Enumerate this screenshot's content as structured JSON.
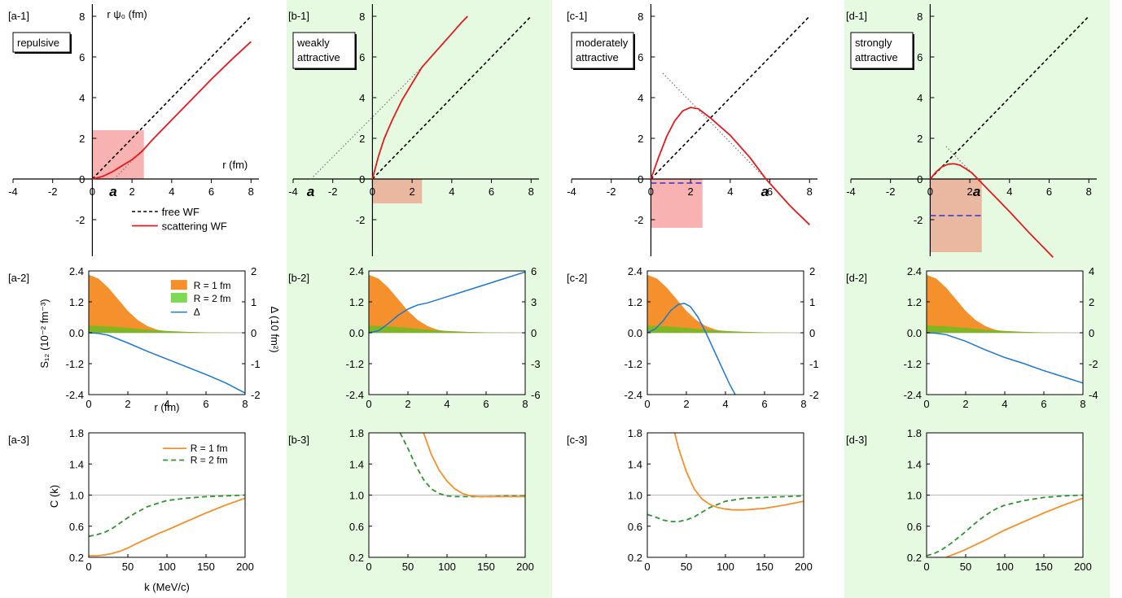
{
  "colors": {
    "panel_bg": "#e6fae1",
    "free": "#000000",
    "scattering": "#e41a1c",
    "fill_r1": "#f4912c",
    "fill_r2": "#7ed957",
    "fill_r2_overlap": "#80b61f",
    "delta": "#1a78d2",
    "c_r1": "#f4912c",
    "c_r2": "#2c962c",
    "bound": "#3333cc",
    "box_pink": "#f8b2b2",
    "box_tan": "#eab7a0"
  },
  "labels": {
    "row1_ylabel": "r ψ₀ (fm)",
    "row1_xlabel": "r (fm)",
    "row2_ylabel": "S₁₂ (10⁻² fm⁻³)",
    "row2_ylabel2": "Δ  (10 fm²)",
    "row2_xlabel": "r (fm)",
    "row3_ylabel": "C (k)",
    "row3_xlabel": "k (MeV/c)",
    "legend_free": "free WF",
    "legend_scat": "scattering WF",
    "legend_r1": "R = 1 fm",
    "legend_r2": "R = 2 fm",
    "legend_delta": "Δ",
    "legend_c_r1": "R = 1 fm",
    "legend_c_r2": "R = 2 fm",
    "a_marker": "a"
  },
  "panels": [
    {
      "col": "a",
      "title": "repulsive",
      "label1": "[a-1]",
      "label2": "[a-2]",
      "label3": "[a-3]",
      "bg": false
    },
    {
      "col": "b",
      "title": "weakly attractive",
      "label1": "[b-1]",
      "label2": "[b-2]",
      "label3": "[b-3]",
      "bg": true
    },
    {
      "col": "c",
      "title": "moderately attractive",
      "label1": "[c-1]",
      "label2": "[c-2]",
      "label3": "[c-3]",
      "bg": false
    },
    {
      "col": "d",
      "title": "strongly attractive",
      "label1": "[d-1]",
      "label2": "[d-2]",
      "label3": "[d-3]",
      "bg": true
    }
  ],
  "chart_data": [
    {
      "type": "line",
      "row": "wave functions",
      "xlim": [
        -4,
        8.4
      ],
      "ylim": [
        -3.8,
        8.6
      ],
      "xticks": [
        -4,
        -2,
        0,
        2,
        4,
        6,
        8
      ],
      "yticks": [
        -2,
        0,
        2,
        4,
        6,
        8
      ],
      "panels": [
        {
          "scattering_length": 1.1,
          "series": [
            {
              "name": "free WF",
              "x": [
                0,
                8
              ],
              "y": [
                0,
                8
              ]
            },
            {
              "name": "scattering WF",
              "x": [
                0,
                0.5,
                1,
                1.5,
                2,
                2.5,
                3,
                4,
                5,
                6,
                7,
                8
              ],
              "y": [
                0,
                0.12,
                0.35,
                0.65,
                0.95,
                1.35,
                1.9,
                2.9,
                3.9,
                4.9,
                5.85,
                6.75
              ]
            }
          ],
          "asymptote": {
            "x": [
              1.1,
              2.6
            ],
            "y": [
              0,
              1.5
            ]
          },
          "shaded": {
            "x": [
              0,
              2.6
            ],
            "y": [
              0,
              2.4
            ]
          }
        },
        {
          "scattering_length": -3.1,
          "series": [
            {
              "name": "free WF",
              "x": [
                0,
                8
              ],
              "y": [
                0,
                8
              ]
            },
            {
              "name": "scattering WF",
              "x": [
                0,
                0.3,
                0.6,
                1,
                1.5,
                2,
                2.5,
                3,
                3.5,
                4,
                4.5,
                4.8
              ],
              "y": [
                0,
                1.1,
                2.0,
                2.9,
                3.9,
                4.7,
                5.5,
                6.05,
                6.6,
                7.15,
                7.7,
                8.0
              ]
            }
          ],
          "asymptote": {
            "x": [
              -3.1,
              2.5
            ],
            "y": [
              0,
              5.5
            ]
          },
          "shaded": {
            "x": [
              0,
              2.5
            ],
            "y": [
              -1.2,
              0
            ]
          }
        },
        {
          "scattering_length": 5.8,
          "series": [
            {
              "name": "free WF",
              "x": [
                0,
                8
              ],
              "y": [
                0,
                8
              ]
            },
            {
              "name": "scattering WF",
              "x": [
                0,
                0.4,
                0.8,
                1.2,
                1.6,
                2,
                2.4,
                3,
                4,
                5,
                5.8,
                7,
                8
              ],
              "y": [
                0,
                1.1,
                2.1,
                2.85,
                3.35,
                3.52,
                3.45,
                3.0,
                2.15,
                1.05,
                0,
                -1.3,
                -2.25
              ]
            }
          ],
          "asymptote": {
            "x": [
              0.6,
              5.8
            ],
            "y": [
              5.2,
              0
            ]
          },
          "shaded": {
            "x": [
              0,
              2.6
            ],
            "y": [
              -2.4,
              0
            ]
          },
          "bound_level": -0.2
        },
        {
          "scattering_length": 2.4,
          "series": [
            {
              "name": "free WF",
              "x": [
                0,
                8
              ],
              "y": [
                0,
                8
              ]
            },
            {
              "name": "scattering WF",
              "x": [
                0,
                0.3,
                0.6,
                0.9,
                1.2,
                1.5,
                1.8,
                2.1,
                2.4,
                3,
                4,
                5,
                6,
                6.2
              ],
              "y": [
                0,
                0.35,
                0.6,
                0.73,
                0.75,
                0.68,
                0.5,
                0.3,
                0,
                -0.6,
                -1.6,
                -2.65,
                -3.65,
                -3.85
              ]
            }
          ],
          "asymptote": {
            "x": [
              0.8,
              2.4
            ],
            "y": [
              1.6,
              0
            ]
          },
          "shaded": {
            "x": [
              0,
              2.6
            ],
            "y": [
              -3.6,
              0
            ]
          },
          "bound_level": -1.8
        }
      ]
    },
    {
      "type": "area",
      "row": "source and delta",
      "xlim": [
        0,
        8
      ],
      "ylim": [
        -2.4,
        2.4
      ],
      "xticks": [
        0,
        2,
        4,
        6,
        8
      ],
      "yticks": [
        -2.4,
        -1.2,
        0.0,
        1.2,
        2.4
      ],
      "source_r1": {
        "x": [
          0,
          0.5,
          1,
          1.5,
          2,
          2.5,
          3,
          3.5,
          4,
          5,
          6,
          8
        ],
        "y": [
          2.25,
          2.1,
          1.75,
          1.3,
          0.85,
          0.5,
          0.26,
          0.12,
          0.05,
          0.01,
          0,
          0
        ]
      },
      "source_r2": {
        "x": [
          0,
          1,
          2,
          3,
          4,
          5,
          6,
          7,
          8
        ],
        "y": [
          0.28,
          0.25,
          0.19,
          0.12,
          0.07,
          0.035,
          0.015,
          0.005,
          0
        ]
      },
      "panels": [
        {
          "y2lim": [
            -2,
            2
          ],
          "y2ticks": [
            -2,
            -1,
            0,
            1,
            2
          ],
          "delta": {
            "x": [
              0,
              0.5,
              1,
              2,
              3,
              4,
              5,
              6,
              7,
              8
            ],
            "y": [
              0.0,
              -0.02,
              -0.08,
              -0.33,
              -0.6,
              -0.85,
              -1.1,
              -1.35,
              -1.62,
              -1.95
            ]
          }
        },
        {
          "y2lim": [
            -6,
            6
          ],
          "y2ticks": [
            -6,
            -3,
            0,
            3,
            6
          ],
          "delta": {
            "x": [
              0,
              0.5,
              1,
              1.5,
              2,
              2.5,
              3,
              4,
              5,
              6,
              7,
              8
            ],
            "y": [
              0,
              0.2,
              0.9,
              1.7,
              2.3,
              2.7,
              2.9,
              3.5,
              4.1,
              4.7,
              5.3,
              5.9
            ]
          }
        },
        {
          "y2lim": [
            -2,
            2
          ],
          "y2ticks": [
            -2,
            -1,
            0,
            1,
            2
          ],
          "delta": {
            "x": [
              0,
              0.4,
              0.8,
              1.2,
              1.6,
              1.9,
              2.2,
              2.6,
              3,
              3.4,
              3.8,
              4.2,
              4.5
            ],
            "y": [
              0,
              0.12,
              0.38,
              0.72,
              0.92,
              0.95,
              0.85,
              0.5,
              0.0,
              -0.55,
              -1.1,
              -1.65,
              -2.0
            ]
          }
        },
        {
          "y2lim": [
            -4,
            4
          ],
          "y2ticks": [
            -4,
            -2,
            0,
            2,
            4
          ],
          "delta": {
            "x": [
              0,
              0.5,
              1,
              2,
              3,
              4,
              5,
              6,
              7,
              8
            ],
            "y": [
              0,
              -0.03,
              -0.12,
              -0.55,
              -1.1,
              -1.6,
              -2.0,
              -2.45,
              -2.85,
              -3.25
            ]
          }
        }
      ]
    },
    {
      "type": "line",
      "row": "correlation functions",
      "xlim": [
        0,
        200
      ],
      "ylim": [
        0.2,
        1.8
      ],
      "xticks": [
        0,
        50,
        100,
        150,
        200
      ],
      "yticks": [
        0.2,
        0.6,
        1.0,
        1.4,
        1.8
      ],
      "panels": [
        {
          "series": [
            {
              "name": "R = 1 fm",
              "x": [
                0,
                10,
                20,
                30,
                40,
                50,
                60,
                75,
                90,
                100,
                125,
                150,
                175,
                200
              ],
              "y": [
                0.22,
                0.22,
                0.23,
                0.25,
                0.28,
                0.32,
                0.37,
                0.44,
                0.51,
                0.55,
                0.66,
                0.77,
                0.87,
                0.96
              ]
            },
            {
              "name": "R = 2 fm",
              "x": [
                0,
                10,
                20,
                30,
                40,
                50,
                60,
                75,
                90,
                100,
                125,
                150,
                175,
                200
              ],
              "y": [
                0.47,
                0.49,
                0.52,
                0.57,
                0.64,
                0.71,
                0.77,
                0.85,
                0.9,
                0.93,
                0.96,
                0.98,
                0.99,
                1.0
              ]
            }
          ]
        },
        {
          "series": [
            {
              "name": "R = 1 fm",
              "x": [
                70,
                80,
                90,
                100,
                110,
                120,
                130,
                140,
                150,
                175,
                200
              ],
              "y": [
                1.8,
                1.52,
                1.32,
                1.18,
                1.08,
                1.02,
                0.99,
                0.98,
                0.98,
                0.98,
                0.98
              ]
            },
            {
              "name": "R = 2 fm",
              "x": [
                40,
                50,
                60,
                70,
                80,
                90,
                100,
                110,
                125,
                150,
                175,
                200
              ],
              "y": [
                1.8,
                1.6,
                1.38,
                1.2,
                1.08,
                1.02,
                0.99,
                0.98,
                0.98,
                0.98,
                0.99,
                0.99
              ]
            }
          ]
        },
        {
          "series": [
            {
              "name": "R = 1 fm",
              "x": [
                35,
                40,
                50,
                60,
                70,
                80,
                90,
                100,
                110,
                125,
                150,
                175,
                200
              ],
              "y": [
                1.8,
                1.6,
                1.3,
                1.08,
                0.95,
                0.88,
                0.84,
                0.82,
                0.81,
                0.81,
                0.83,
                0.87,
                0.92
              ]
            },
            {
              "name": "R = 2 fm",
              "x": [
                0,
                10,
                20,
                30,
                40,
                50,
                60,
                70,
                80,
                100,
                125,
                150,
                175,
                200
              ],
              "y": [
                0.75,
                0.72,
                0.68,
                0.66,
                0.66,
                0.68,
                0.72,
                0.78,
                0.84,
                0.92,
                0.96,
                0.97,
                0.98,
                0.99
              ]
            }
          ]
        },
        {
          "series": [
            {
              "name": "R = 1 fm",
              "x": [
                25,
                40,
                50,
                60,
                75,
                90,
                100,
                125,
                150,
                175,
                200
              ],
              "y": [
                0.2,
                0.26,
                0.3,
                0.35,
                0.42,
                0.5,
                0.55,
                0.66,
                0.77,
                0.87,
                0.96
              ]
            },
            {
              "name": "R = 2 fm",
              "x": [
                0,
                10,
                20,
                30,
                40,
                50,
                60,
                70,
                80,
                90,
                100,
                125,
                150,
                175,
                200
              ],
              "y": [
                0.22,
                0.25,
                0.3,
                0.37,
                0.45,
                0.53,
                0.62,
                0.7,
                0.77,
                0.83,
                0.87,
                0.93,
                0.97,
                0.99,
                1.0
              ]
            }
          ]
        }
      ]
    }
  ]
}
